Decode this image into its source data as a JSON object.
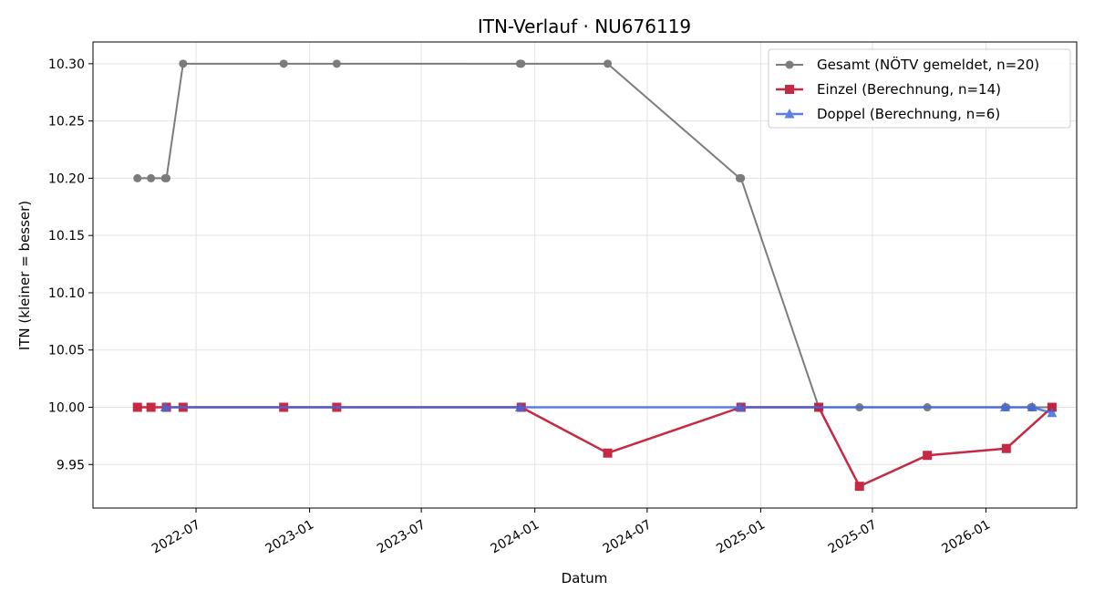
{
  "chart_data": {
    "type": "line",
    "title": "ITN-Verlauf · NU676119",
    "xlabel": "Datum",
    "ylabel": "ITN  (kleiner = besser)",
    "x_axis_type": "date",
    "xlim": [
      "2022-01-15",
      "2026-05-28"
    ],
    "ylim": [
      9.912,
      10.319
    ],
    "x_ticks": [
      "2022-07-01",
      "2023-01-01",
      "2023-07-01",
      "2024-01-01",
      "2024-07-01",
      "2025-01-01",
      "2025-07-01",
      "2026-01-01"
    ],
    "x_tick_labels": [
      "2022-07",
      "2023-01",
      "2023-07",
      "2024-01",
      "2024-07",
      "2025-01",
      "2025-07",
      "2026-01"
    ],
    "y_ticks": [
      9.95,
      10.0,
      10.05,
      10.1,
      10.15,
      10.2,
      10.25,
      10.3
    ],
    "y_tick_labels": [
      "9.95",
      "10.00",
      "10.05",
      "10.10",
      "10.15",
      "10.20",
      "10.25",
      "10.30"
    ],
    "grid": true,
    "legend_position": "top-right",
    "series": [
      {
        "name": "Gesamt (NÖTV gemeldet, n=20)",
        "color": "#666666",
        "marker": "circle",
        "points": [
          {
            "x": "2022-03-28",
            "y": 10.2
          },
          {
            "x": "2022-04-19",
            "y": 10.2
          },
          {
            "x": "2022-05-12",
            "y": 10.2
          },
          {
            "x": "2022-05-14",
            "y": 10.2
          },
          {
            "x": "2022-06-10",
            "y": 10.3
          },
          {
            "x": "2022-11-20",
            "y": 10.3
          },
          {
            "x": "2023-02-14",
            "y": 10.3
          },
          {
            "x": "2023-12-08",
            "y": 10.3
          },
          {
            "x": "2023-12-10",
            "y": 10.3
          },
          {
            "x": "2024-04-28",
            "y": 10.3
          },
          {
            "x": "2024-11-28",
            "y": 10.2
          },
          {
            "x": "2024-11-30",
            "y": 10.2
          },
          {
            "x": "2025-04-05",
            "y": 10.0
          },
          {
            "x": "2025-06-10",
            "y": 10.0
          },
          {
            "x": "2025-09-28",
            "y": 10.0
          },
          {
            "x": "2026-02-01",
            "y": 10.0
          },
          {
            "x": "2026-02-03",
            "y": 10.0
          },
          {
            "x": "2026-03-15",
            "y": 10.0
          },
          {
            "x": "2026-03-17",
            "y": 10.0
          },
          {
            "x": "2026-04-18",
            "y": 10.0
          }
        ]
      },
      {
        "name": "Einzel (Berechnung, n=14)",
        "color": "#c41e3a",
        "marker": "square",
        "points": [
          {
            "x": "2022-03-28",
            "y": 10.0
          },
          {
            "x": "2022-04-19",
            "y": 10.0
          },
          {
            "x": "2022-05-14",
            "y": 10.0
          },
          {
            "x": "2022-06-10",
            "y": 10.0
          },
          {
            "x": "2022-11-20",
            "y": 10.0
          },
          {
            "x": "2023-02-14",
            "y": 10.0
          },
          {
            "x": "2023-12-10",
            "y": 10.0
          },
          {
            "x": "2024-04-28",
            "y": 9.96
          },
          {
            "x": "2024-11-30",
            "y": 10.0
          },
          {
            "x": "2025-04-05",
            "y": 10.0
          },
          {
            "x": "2025-06-10",
            "y": 9.931
          },
          {
            "x": "2025-09-28",
            "y": 9.958
          },
          {
            "x": "2026-02-03",
            "y": 9.964
          },
          {
            "x": "2026-04-18",
            "y": 10.0
          }
        ]
      },
      {
        "name": "Doppel (Berechnung, n=6)",
        "color": "#4169e1",
        "marker": "triangle",
        "points": [
          {
            "x": "2022-05-12",
            "y": 10.0
          },
          {
            "x": "2023-12-08",
            "y": 10.0
          },
          {
            "x": "2024-11-28",
            "y": 10.0
          },
          {
            "x": "2026-02-01",
            "y": 10.0
          },
          {
            "x": "2026-03-17",
            "y": 10.0
          },
          {
            "x": "2026-04-18",
            "y": 9.995
          }
        ]
      }
    ]
  }
}
